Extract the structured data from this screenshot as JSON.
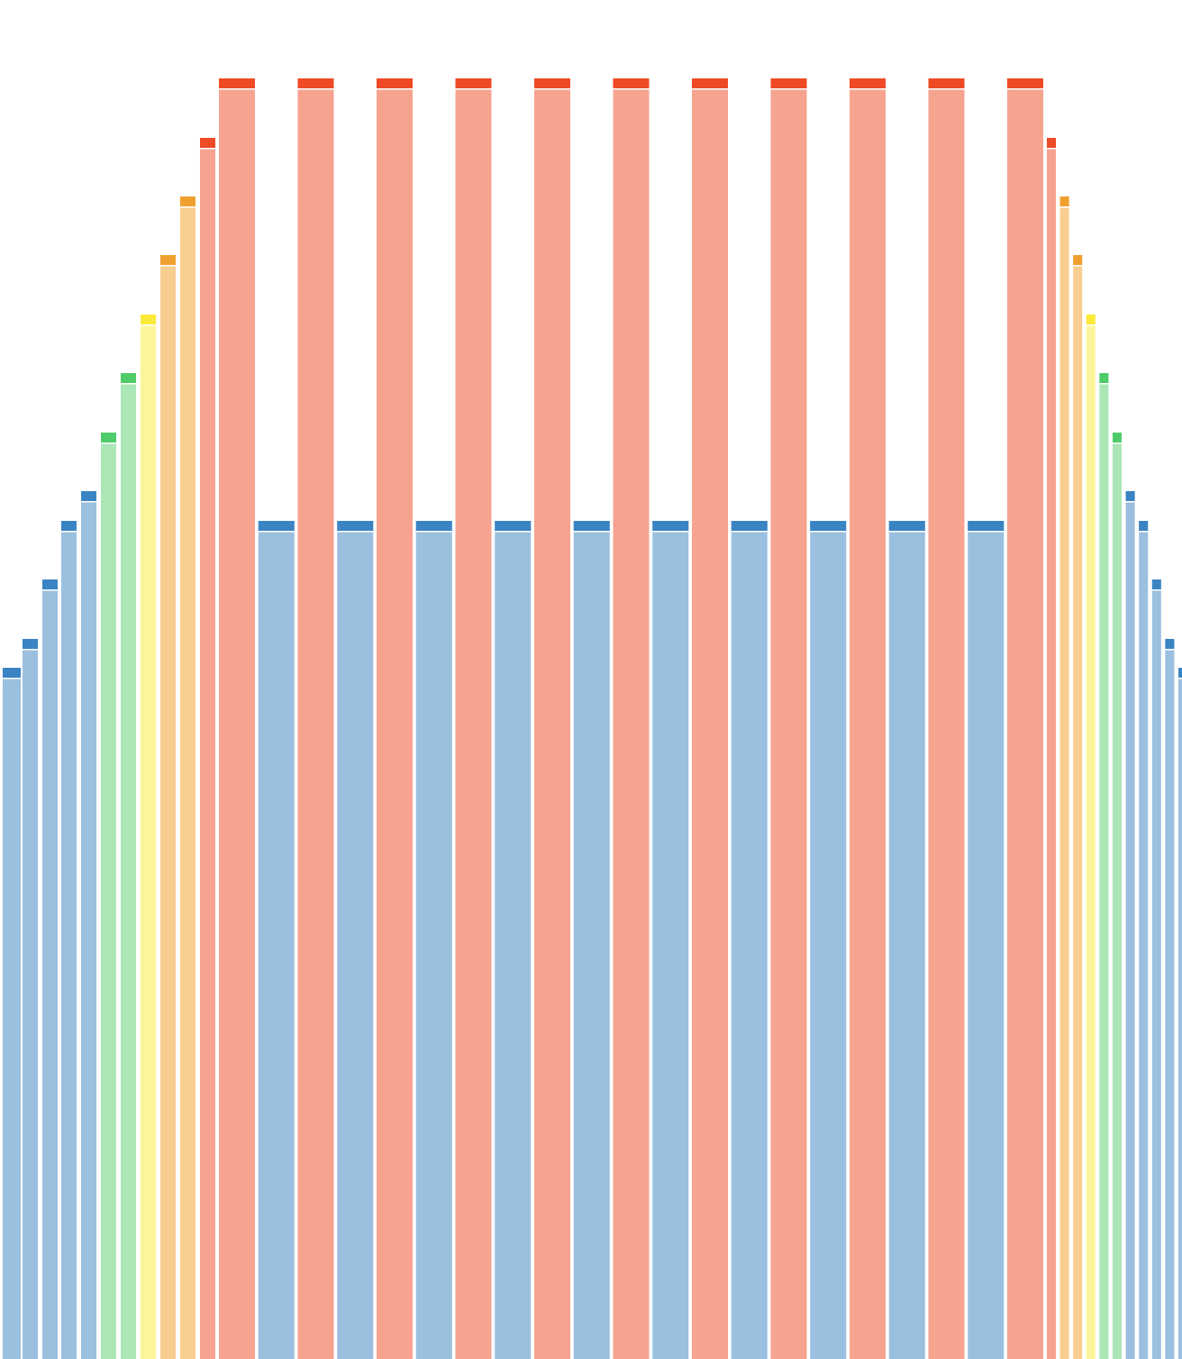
{
  "chart_data": {
    "type": "bar",
    "values": [
      767,
      799,
      865,
      930,
      963,
      1028,
      1094,
      1159,
      1225,
      1290,
      1355,
      1421,
      930,
      1421,
      930,
      1421,
      930,
      1421,
      930,
      1421,
      930,
      1421,
      930,
      1421,
      930,
      1421,
      930,
      1421,
      930,
      1421,
      930,
      1421,
      1355,
      1290,
      1225,
      1159,
      1094,
      1028,
      963,
      930,
      865,
      799,
      767
    ],
    "colors": [
      "#9bbfdf",
      "#9bbfdf",
      "#9bbfdf",
      "#9bbfdf",
      "#9bbfdf",
      "#abe6b6",
      "#abe6b6",
      "#fdf59c",
      "#f8cd90",
      "#f8cd90",
      "#f6a390",
      "#f6a390",
      "#9bbfdf",
      "#f6a390",
      "#9bbfdf",
      "#f6a390",
      "#9bbfdf",
      "#f6a390",
      "#9bbfdf",
      "#f6a390",
      "#9bbfdf",
      "#f6a390",
      "#9bbfdf",
      "#f6a390",
      "#9bbfdf",
      "#f6a390",
      "#9bbfdf",
      "#f6a390",
      "#9bbfdf",
      "#f6a390",
      "#9bbfdf",
      "#f6a390",
      "#f6a390",
      "#f8cd90",
      "#f8cd90",
      "#fdf59c",
      "#abe6b6",
      "#abe6b6",
      "#9bbfdf",
      "#9bbfdf",
      "#9bbfdf",
      "#9bbfdf",
      "#9bbfdf"
    ],
    "cap_colors": [
      "#3a84c4",
      "#3a84c4",
      "#3a84c4",
      "#3a84c4",
      "#3a84c4",
      "#4fcb6a",
      "#4fcb6a",
      "#fbe93a",
      "#f0a030",
      "#f0a030",
      "#ee4a25",
      "#ee4a25",
      "#3a84c4",
      "#ee4a25",
      "#3a84c4",
      "#ee4a25",
      "#3a84c4",
      "#ee4a25",
      "#3a84c4",
      "#ee4a25",
      "#3a84c4",
      "#ee4a25",
      "#3a84c4",
      "#ee4a25",
      "#3a84c4",
      "#ee4a25",
      "#3a84c4",
      "#ee4a25",
      "#3a84c4",
      "#ee4a25",
      "#3a84c4",
      "#ee4a25",
      "#ee4a25",
      "#f0a030",
      "#f0a030",
      "#fbe93a",
      "#4fcb6a",
      "#4fcb6a",
      "#3a84c4",
      "#3a84c4",
      "#3a84c4",
      "#3a84c4",
      "#3a84c4"
    ],
    "ylim": [
      0,
      1508
    ]
  }
}
